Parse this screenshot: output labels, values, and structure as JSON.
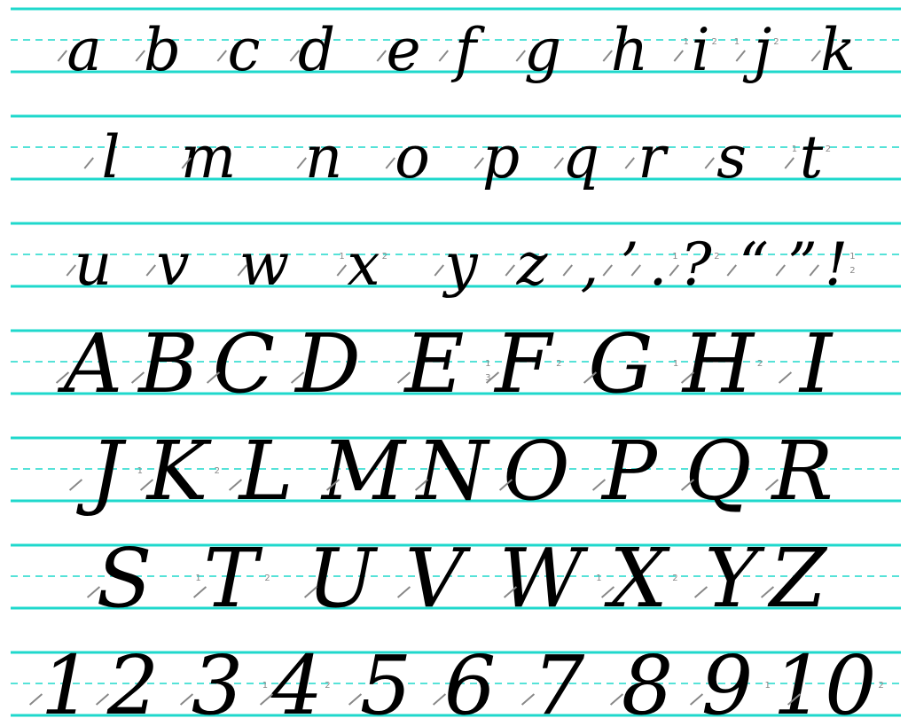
{
  "colors": {
    "line": "#1fd8cc",
    "ink": "#000000",
    "lead_in": "#2a9a2a",
    "stroke_mark": "#888888"
  },
  "rows": [
    {
      "kind": "lower",
      "letters": [
        {
          "char": "a"
        },
        {
          "char": "b"
        },
        {
          "char": "c"
        },
        {
          "char": "d"
        },
        {
          "char": "e"
        },
        {
          "char": "f"
        },
        {
          "char": "g"
        },
        {
          "char": "h"
        },
        {
          "char": "i",
          "marks": [
            "1",
            "2"
          ]
        },
        {
          "char": "j",
          "marks": [
            "1",
            "2"
          ]
        },
        {
          "char": "k"
        }
      ]
    },
    {
      "kind": "lower",
      "letters": [
        {
          "char": "l"
        },
        {
          "char": "m"
        },
        {
          "char": "n"
        },
        {
          "char": "o"
        },
        {
          "char": "p"
        },
        {
          "char": "q"
        },
        {
          "char": "r"
        },
        {
          "char": "s"
        },
        {
          "char": "t",
          "marks": [
            "1",
            "2"
          ]
        }
      ]
    },
    {
      "kind": "lower",
      "letters": [
        {
          "char": "u"
        },
        {
          "char": "v"
        },
        {
          "char": "w"
        },
        {
          "char": "x",
          "marks": [
            "1",
            "2"
          ]
        },
        {
          "char": "y"
        },
        {
          "char": "z"
        },
        {
          "char": ","
        },
        {
          "char": "’"
        },
        {
          "char": "."
        },
        {
          "char": "?",
          "marks": [
            "1",
            "2"
          ]
        },
        {
          "char": "“"
        },
        {
          "char": "”"
        },
        {
          "char": "!",
          "marks": [
            "1",
            "2"
          ]
        }
      ]
    },
    {
      "kind": "upper",
      "letters": [
        {
          "char": "A"
        },
        {
          "char": "B"
        },
        {
          "char": "C"
        },
        {
          "char": "D"
        },
        {
          "char": "E"
        },
        {
          "char": "F",
          "marks": [
            "1",
            "2",
            "3"
          ]
        },
        {
          "char": "G"
        },
        {
          "char": "H",
          "marks": [
            "1",
            "2"
          ]
        },
        {
          "char": "I"
        }
      ]
    },
    {
      "kind": "upper",
      "letters": [
        {
          "char": "J"
        },
        {
          "char": "K",
          "marks": [
            "1",
            "2"
          ]
        },
        {
          "char": "L"
        },
        {
          "char": "M"
        },
        {
          "char": "N"
        },
        {
          "char": "O"
        },
        {
          "char": "P"
        },
        {
          "char": "Q"
        },
        {
          "char": "R"
        }
      ]
    },
    {
      "kind": "upper",
      "letters": [
        {
          "char": "S"
        },
        {
          "char": "T",
          "marks": [
            "1",
            "2"
          ]
        },
        {
          "char": "U"
        },
        {
          "char": "V"
        },
        {
          "char": "W"
        },
        {
          "char": "X",
          "marks": [
            "1",
            "2"
          ]
        },
        {
          "char": "Y"
        },
        {
          "char": "Z"
        }
      ]
    },
    {
      "kind": "upper",
      "letters": [
        {
          "char": "1"
        },
        {
          "char": "2"
        },
        {
          "char": "3"
        },
        {
          "char": "4",
          "marks": [
            "1",
            "2"
          ]
        },
        {
          "char": "5"
        },
        {
          "char": "6"
        },
        {
          "char": "7"
        },
        {
          "char": "8"
        },
        {
          "char": "9"
        },
        {
          "char": "10",
          "marks": [
            "1",
            "2"
          ]
        }
      ]
    }
  ]
}
